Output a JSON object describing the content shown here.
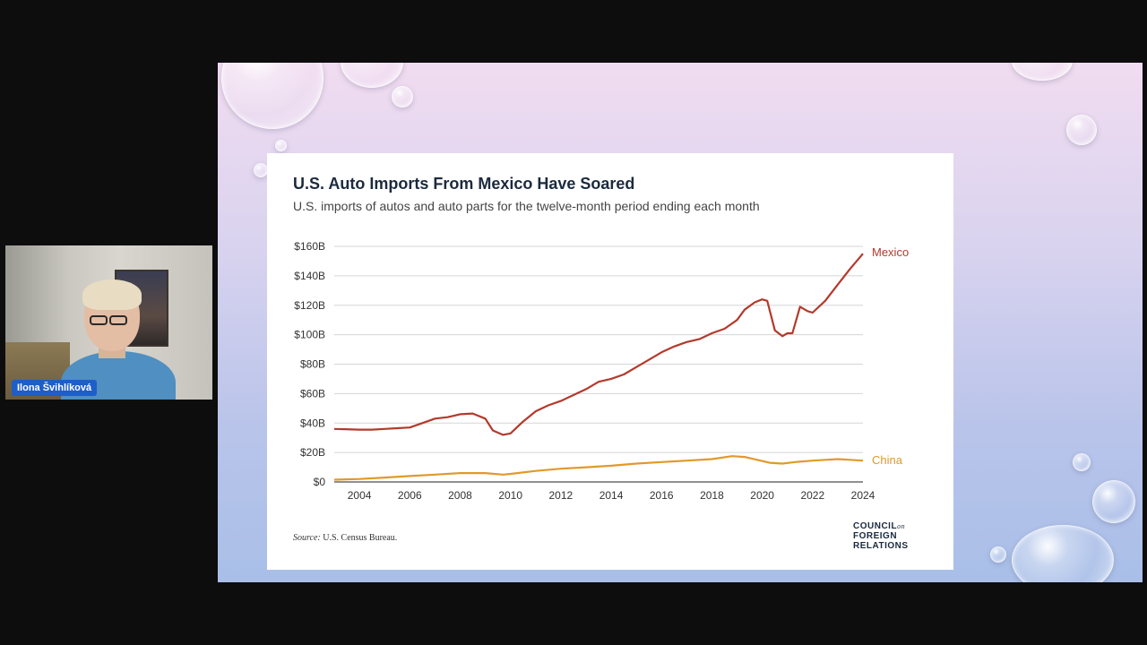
{
  "participant": {
    "name": "Ilona Švihlíková"
  },
  "slide": {
    "title": "U.S. Auto Imports From Mexico Have Soared",
    "subtitle": "U.S. imports of autos and auto parts for the twelve-month period ending each month",
    "source_label": "Source:",
    "source_text": " U.S. Census Bureau.",
    "logo": {
      "line1": "COUNCIL",
      "on": "on",
      "line2": "FOREIGN",
      "line3": "RELATIONS"
    }
  },
  "colors": {
    "mexico": "#b33a2c",
    "china": "#e09a2a",
    "grid": "#d5d5d5"
  },
  "chart_data": {
    "type": "line",
    "title": "U.S. Auto Imports From Mexico Have Soared",
    "subtitle": "U.S. imports of autos and auto parts for the twelve-month period ending each month",
    "xlabel": "",
    "ylabel": "",
    "xlim": [
      2003,
      2024
    ],
    "ylim": [
      0,
      160
    ],
    "x_ticks": [
      2004,
      2006,
      2008,
      2010,
      2012,
      2014,
      2016,
      2018,
      2020,
      2022,
      2024
    ],
    "y_ticks": [
      0,
      20,
      40,
      60,
      80,
      100,
      120,
      140,
      160
    ],
    "y_tick_labels": [
      "$0",
      "$20B",
      "$40B",
      "$60B",
      "$80B",
      "$100B",
      "$120B",
      "$140B",
      "$160B"
    ],
    "grid": true,
    "series": [
      {
        "name": "Mexico",
        "x": [
          2003,
          2004,
          2004.5,
          2005,
          2005.5,
          2006,
          2006.5,
          2007,
          2007.5,
          2008,
          2008.5,
          2009,
          2009.3,
          2009.7,
          2010,
          2010.5,
          2011,
          2011.5,
          2012,
          2012.5,
          2013,
          2013.5,
          2014,
          2014.5,
          2015,
          2015.5,
          2016,
          2016.5,
          2017,
          2017.5,
          2018,
          2018.5,
          2019,
          2019.3,
          2019.7,
          2020,
          2020.2,
          2020.5,
          2020.8,
          2021,
          2021.2,
          2021.5,
          2021.8,
          2022,
          2022.5,
          2023,
          2023.5,
          2024
        ],
        "values": [
          36,
          35.5,
          35.5,
          36,
          36.5,
          37,
          40,
          43,
          44,
          46,
          46.5,
          43,
          35,
          32,
          33,
          41,
          48,
          52,
          55,
          59,
          63,
          68,
          70,
          73,
          78,
          83,
          88,
          92,
          95,
          97,
          101,
          104,
          110,
          117,
          122,
          124,
          123,
          103,
          99,
          101,
          101,
          119,
          116,
          115,
          123,
          134,
          145,
          155
        ]
      },
      {
        "name": "China",
        "x": [
          2003,
          2004,
          2005,
          2006,
          2007,
          2008,
          2009,
          2009.7,
          2010,
          2011,
          2012,
          2013,
          2014,
          2015,
          2016,
          2017,
          2018,
          2018.8,
          2019.3,
          2019.8,
          2020.3,
          2020.8,
          2021.3,
          2022,
          2022.5,
          2023,
          2023.5,
          2024
        ],
        "values": [
          1.5,
          2,
          3,
          4,
          5,
          6,
          6,
          5,
          5.5,
          7.5,
          9,
          10,
          11,
          12.5,
          13.5,
          14.5,
          15.5,
          17.5,
          17,
          15,
          13,
          12.5,
          13.5,
          14.5,
          15,
          15.5,
          15,
          14.5
        ]
      }
    ]
  }
}
